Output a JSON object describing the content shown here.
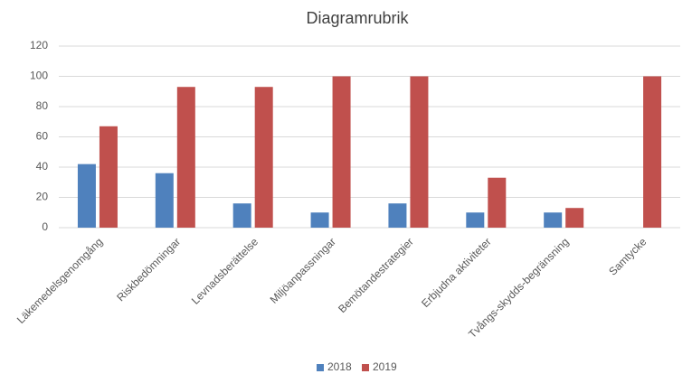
{
  "chart_data": {
    "type": "bar",
    "title": "Diagramrubrik",
    "categories": [
      "Läkemedelsgenomgång",
      "Riskbedömningar",
      "Levnadsberättelse",
      "Miljöanpassningar",
      "Bemötandestrategier",
      "Erbjudna aktiviteter",
      "Tvångs-skydds-begränsning",
      "Samtycke"
    ],
    "series": [
      {
        "name": "2018",
        "color": "#4f81bd",
        "values": [
          42,
          36,
          16,
          10,
          16,
          10,
          10,
          0
        ]
      },
      {
        "name": "2019",
        "color": "#c0504d",
        "values": [
          67,
          93,
          93,
          100,
          100,
          33,
          13,
          100
        ]
      }
    ],
    "ylim": [
      0,
      120
    ],
    "yticks": [
      0,
      20,
      40,
      60,
      80,
      100,
      120
    ],
    "grid": true,
    "legend": "bottom"
  }
}
